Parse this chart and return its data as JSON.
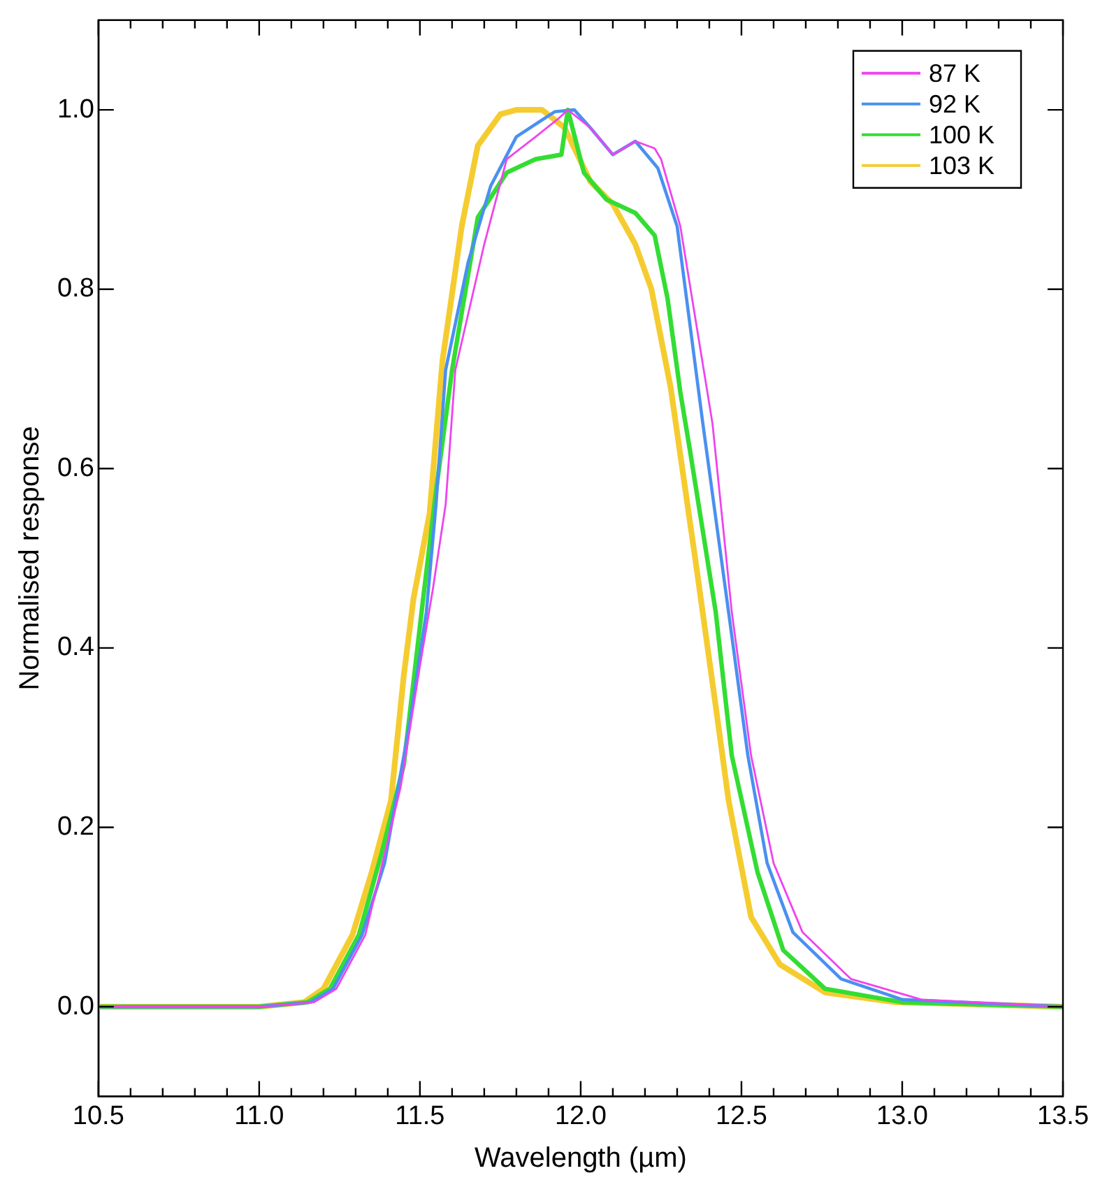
{
  "chart_data": {
    "type": "line",
    "xlabel": "Wavelength (µm)",
    "ylabel": "Normalised response",
    "xlim": [
      10.5,
      13.5
    ],
    "ylim": [
      -0.1,
      1.1
    ],
    "xticks": [
      10.5,
      {
        "value": 10.6,
        "label": null
      },
      {
        "value": 10.7,
        "label": null
      },
      {
        "value": 10.8,
        "label": null
      },
      {
        "value": 10.9,
        "label": null
      },
      "11.0",
      {
        "value": 11.1,
        "label": null
      },
      {
        "value": 11.2,
        "label": null
      },
      {
        "value": 11.3,
        "label": null
      },
      {
        "value": 11.4,
        "label": null
      },
      11.5,
      {
        "value": 11.6,
        "label": null
      },
      {
        "value": 11.7,
        "label": null
      },
      {
        "value": 11.8,
        "label": null
      },
      {
        "value": 11.9,
        "label": null
      },
      {
        "value": 12,
        "label": "12.0"
      },
      {
        "value": 12.1,
        "label": null
      },
      {
        "value": 12.2,
        "label": null
      },
      {
        "value": 12.3,
        "label": null
      },
      {
        "value": 12.4,
        "label": null
      },
      12.5,
      {
        "value": 12.6,
        "label": null
      },
      {
        "value": 12.7,
        "label": null
      },
      {
        "value": 12.8,
        "label": null
      },
      {
        "value": 12.9,
        "label": null
      },
      {
        "value": 13,
        "label": "13.0"
      },
      {
        "value": 13.1,
        "label": null
      },
      {
        "value": 13.2,
        "label": null
      },
      {
        "value": 13.3,
        "label": null
      },
      {
        "value": 13.4,
        "label": null
      },
      13.5
    ],
    "yticks": [
      {
        "value": 0,
        "label": "0.0"
      },
      0.2,
      0.4,
      0.6,
      0.8,
      {
        "value": 1,
        "label": "1.0"
      }
    ],
    "grid": false,
    "legend": "top right",
    "marker": "none",
    "line_style": "solid",
    "series": [
      {
        "name": "87 K",
        "color": "#ee44ee",
        "x": [
          10.5,
          11.0,
          11.17,
          11.24,
          11.33,
          11.44,
          11.5,
          11.54,
          11.58,
          11.61,
          11.7,
          11.77,
          11.86,
          11.93,
          11.96,
          12.03,
          12.1,
          12.17,
          12.23,
          12.25,
          12.31,
          12.36,
          12.41,
          12.47,
          12.53,
          12.6,
          12.69,
          12.84,
          13.06,
          13.5
        ],
        "values": [
          0,
          0,
          0.005,
          0.02,
          0.08,
          0.245,
          0.38,
          0.465,
          0.56,
          0.71,
          0.85,
          0.945,
          0.97,
          0.99,
          1.0,
          0.98,
          0.95,
          0.965,
          0.957,
          0.945,
          0.87,
          0.76,
          0.65,
          0.44,
          0.28,
          0.16,
          0.083,
          0.031,
          0.008,
          0
        ]
      },
      {
        "name": "92 K",
        "color": "#4a90f0",
        "x": [
          10.5,
          11.0,
          11.16,
          11.23,
          11.32,
          11.39,
          11.47,
          11.52,
          11.55,
          11.58,
          11.65,
          11.72,
          11.8,
          11.92,
          11.98,
          12.03,
          12.1,
          12.17,
          12.24,
          12.3,
          12.34,
          12.38,
          12.46,
          12.52,
          12.58,
          12.66,
          12.81,
          13.0,
          13.5
        ],
        "values": [
          0,
          0,
          0.005,
          0.02,
          0.08,
          0.16,
          0.32,
          0.44,
          0.56,
          0.71,
          0.83,
          0.915,
          0.97,
          0.998,
          1.0,
          0.98,
          0.95,
          0.965,
          0.935,
          0.87,
          0.76,
          0.65,
          0.44,
          0.28,
          0.16,
          0.083,
          0.031,
          0.008,
          0
        ]
      },
      {
        "name": "100 K",
        "color": "#33dd33",
        "x": [
          10.5,
          11.0,
          11.15,
          11.22,
          11.31,
          11.38,
          11.45,
          11.51,
          11.55,
          11.6,
          11.68,
          11.77,
          11.86,
          11.94,
          11.96,
          12.01,
          12.08,
          12.17,
          12.23,
          12.27,
          12.31,
          12.34,
          12.42,
          12.47,
          12.55,
          12.63,
          12.76,
          13.0,
          13.5
        ],
        "values": [
          0,
          0,
          0.005,
          0.02,
          0.08,
          0.17,
          0.27,
          0.455,
          0.575,
          0.71,
          0.88,
          0.93,
          0.945,
          0.95,
          1.0,
          0.93,
          0.9,
          0.885,
          0.86,
          0.79,
          0.685,
          0.62,
          0.44,
          0.28,
          0.15,
          0.063,
          0.02,
          0.005,
          0
        ]
      },
      {
        "name": "103 K",
        "color": "#f5cc30",
        "x": [
          10.5,
          11.0,
          11.14,
          11.2,
          11.29,
          11.35,
          11.41,
          11.45,
          11.48,
          11.53,
          11.57,
          11.63,
          11.68,
          11.75,
          11.8,
          11.88,
          11.95,
          12.03,
          12.1,
          12.17,
          12.22,
          12.28,
          12.33,
          12.36,
          12.42,
          12.46,
          12.53,
          12.62,
          12.76,
          12.98,
          13.5
        ],
        "values": [
          0,
          0,
          0.005,
          0.02,
          0.08,
          0.15,
          0.23,
          0.37,
          0.455,
          0.55,
          0.72,
          0.87,
          0.96,
          0.995,
          1.0,
          1.0,
          0.98,
          0.92,
          0.895,
          0.85,
          0.8,
          0.69,
          0.565,
          0.49,
          0.335,
          0.23,
          0.1,
          0.047,
          0.016,
          0.005,
          0
        ]
      }
    ]
  }
}
